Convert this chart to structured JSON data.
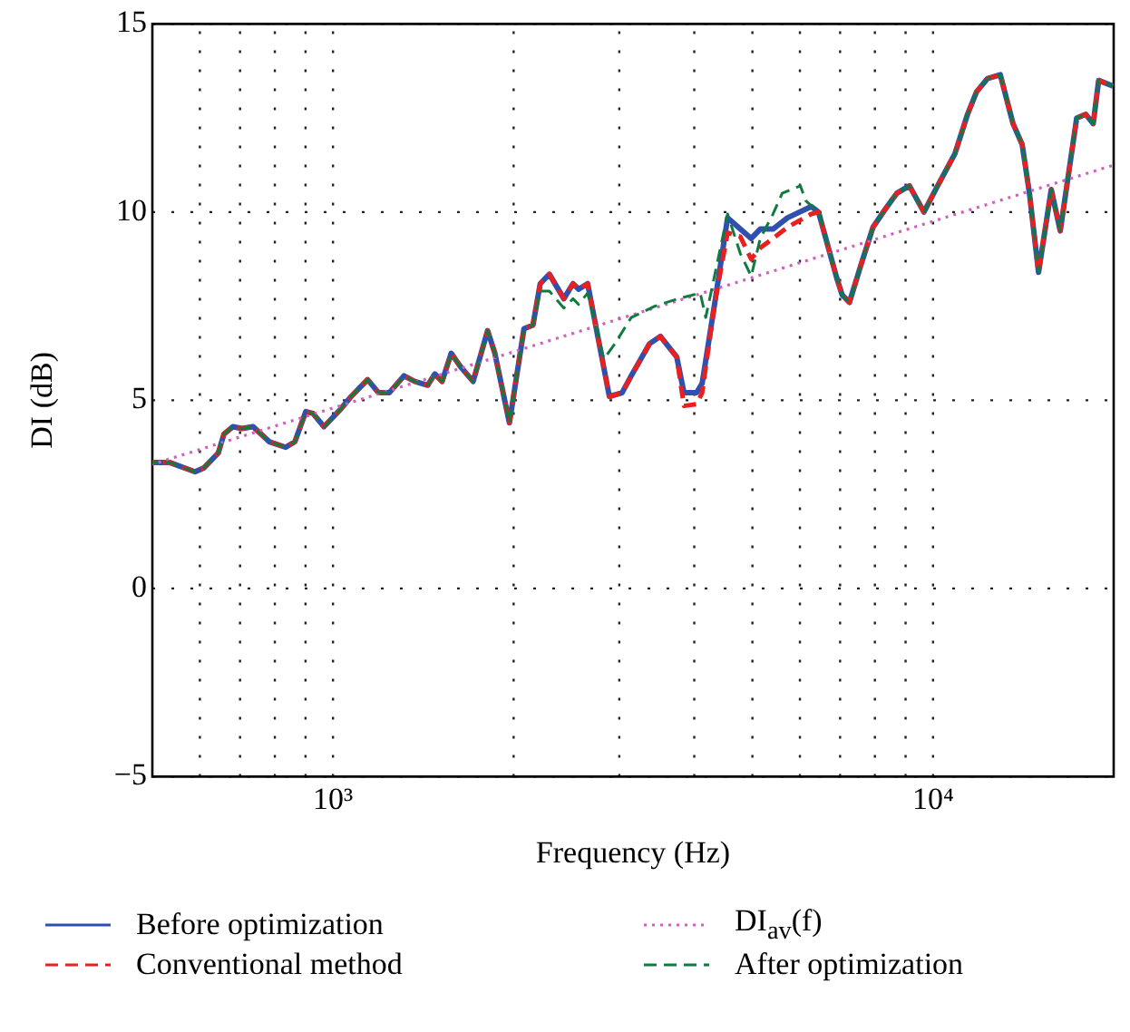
{
  "chart_data": {
    "type": "line",
    "xlabel": "Frequency (Hz)",
    "ylabel": "DI (dB)",
    "log": "x",
    "xlim": [
      500,
      20000
    ],
    "ylim": [
      -5,
      15
    ],
    "xticks": [
      {
        "value": 600,
        "label": null
      },
      {
        "value": 700,
        "label": null
      },
      {
        "value": 800,
        "label": null
      },
      {
        "value": 900,
        "label": null
      },
      {
        "value": 1000,
        "label": "10³"
      },
      {
        "value": 2000,
        "label": null
      },
      {
        "value": 3000,
        "label": null
      },
      {
        "value": 4000,
        "label": null
      },
      {
        "value": 5000,
        "label": null
      },
      {
        "value": 6000,
        "label": null
      },
      {
        "value": 7000,
        "label": null
      },
      {
        "value": 8000,
        "label": null
      },
      {
        "value": 9000,
        "label": null
      },
      {
        "value": 10000,
        "label": "10⁴"
      }
    ],
    "yticks": [
      {
        "value": -5,
        "label": "−5"
      },
      0,
      5,
      10,
      15
    ],
    "grid": true,
    "legend": "bottom",
    "marker": "none",
    "series": [
      {
        "name": "Before optimization",
        "color": "#3050b0",
        "line_style": "solid",
        "x": [
          500,
          534,
          589,
          609,
          644,
          658,
          681,
          705,
          736,
          783,
          834,
          864,
          901,
          926,
          966,
          1028,
          1072,
          1142,
          1191,
          1241,
          1313,
          1369,
          1438,
          1478,
          1520,
          1574,
          1630,
          1712,
          1810,
          1861,
          1968,
          2081,
          2154,
          2215,
          2294,
          2425,
          2512,
          2566,
          2657,
          2888,
          3032,
          3141,
          3368,
          3512,
          3740,
          3845,
          4037,
          4123,
          4329,
          4546,
          4773,
          4977,
          5153,
          5412,
          5722,
          6266,
          6444,
          6910,
          7055,
          7255,
          7567,
          7943,
          8343,
          8700,
          9133,
          9656,
          10140,
          10873,
          11416,
          11820,
          12326,
          12945,
          13593,
          14077,
          14476,
          14991,
          15740,
          16293,
          17353,
          17968,
          18489,
          18880,
          19953
        ],
        "values": [
          3.35,
          3.35,
          3.1,
          3.2,
          3.6,
          4.1,
          4.3,
          4.25,
          4.3,
          3.9,
          3.75,
          3.9,
          4.7,
          4.65,
          4.3,
          4.75,
          5.1,
          5.55,
          5.2,
          5.2,
          5.65,
          5.5,
          5.4,
          5.7,
          5.5,
          6.25,
          5.9,
          5.5,
          6.85,
          6.25,
          4.4,
          6.9,
          7.0,
          8.1,
          8.35,
          7.7,
          8.1,
          7.95,
          8.1,
          5.1,
          5.2,
          5.65,
          6.5,
          6.7,
          6.15,
          5.2,
          5.2,
          5.45,
          7.6,
          9.85,
          9.55,
          9.3,
          9.55,
          9.55,
          9.85,
          10.15,
          10.0,
          8.25,
          7.8,
          7.6,
          8.55,
          9.6,
          10.1,
          10.5,
          10.7,
          10.0,
          10.65,
          11.55,
          12.6,
          13.2,
          13.55,
          13.65,
          12.35,
          11.8,
          10.5,
          8.4,
          10.6,
          9.5,
          12.5,
          12.6,
          12.35,
          13.5,
          13.35
        ]
      },
      {
        "name": "Conventional method",
        "color": "#e82020",
        "line_style": "dashed",
        "x": [
          500,
          534,
          589,
          609,
          644,
          658,
          681,
          705,
          736,
          783,
          834,
          864,
          901,
          926,
          966,
          1028,
          1072,
          1142,
          1191,
          1241,
          1313,
          1369,
          1438,
          1478,
          1520,
          1574,
          1630,
          1712,
          1810,
          1861,
          1968,
          2081,
          2154,
          2215,
          2294,
          2425,
          2512,
          2566,
          2657,
          2888,
          3032,
          3141,
          3368,
          3512,
          3740,
          3845,
          4037,
          4123,
          4329,
          4546,
          4773,
          4977,
          5153,
          5412,
          5722,
          6266,
          6444,
          6910,
          7055,
          7255,
          7567,
          7943,
          8343,
          8700,
          9133,
          9656,
          10140,
          10873,
          11416,
          11820,
          12326,
          12945,
          13593,
          14077,
          14476,
          14991,
          15740,
          16293,
          17353,
          17968,
          18489,
          18880,
          19953
        ],
        "values": [
          3.35,
          3.35,
          3.1,
          3.2,
          3.6,
          4.1,
          4.3,
          4.25,
          4.3,
          3.9,
          3.75,
          3.9,
          4.7,
          4.65,
          4.3,
          4.75,
          5.1,
          5.55,
          5.2,
          5.2,
          5.65,
          5.5,
          5.4,
          5.7,
          5.5,
          6.25,
          5.9,
          5.5,
          6.85,
          6.25,
          4.4,
          6.9,
          7.0,
          8.1,
          8.35,
          7.7,
          8.1,
          7.95,
          8.1,
          5.1,
          5.2,
          5.65,
          6.5,
          6.7,
          6.15,
          4.85,
          4.9,
          5.2,
          7.6,
          9.45,
          9.35,
          8.75,
          9.05,
          9.3,
          9.6,
          9.95,
          10.0,
          8.25,
          7.8,
          7.6,
          8.55,
          9.6,
          10.1,
          10.5,
          10.7,
          10.0,
          10.65,
          11.55,
          12.6,
          13.2,
          13.55,
          13.65,
          12.35,
          11.8,
          10.5,
          8.4,
          10.6,
          9.5,
          12.5,
          12.6,
          12.35,
          13.5,
          13.35
        ]
      },
      {
        "name": "DI$_{av}$(f)",
        "color": "#d060c0",
        "line_style": "dotted",
        "x": [
          500,
          20000
        ],
        "values": [
          3.3,
          11.25
        ]
      },
      {
        "name": "After optimization",
        "color": "#107a40",
        "line_style": "dashed",
        "x": [
          500,
          534,
          589,
          609,
          644,
          658,
          681,
          705,
          736,
          783,
          834,
          864,
          901,
          926,
          966,
          1028,
          1072,
          1142,
          1191,
          1241,
          1313,
          1369,
          1438,
          1478,
          1520,
          1574,
          1630,
          1712,
          1810,
          1861,
          1968,
          2081,
          2154,
          2215,
          2294,
          2425,
          2512,
          2566,
          2657,
          2828,
          2949,
          3141,
          3438,
          3765,
          4093,
          4180,
          4546,
          4773,
          4977,
          5153,
          5412,
          5605,
          6009,
          6137,
          6444,
          6910,
          7055,
          7255,
          7567,
          7943,
          8343,
          8700,
          9133,
          9656,
          10140,
          10873,
          11416,
          11820,
          12326,
          12945,
          13593,
          14077,
          14476,
          14991,
          15740,
          16293,
          17353,
          17968,
          18489,
          18880,
          19953
        ],
        "values": [
          3.35,
          3.35,
          3.1,
          3.2,
          3.6,
          4.1,
          4.3,
          4.25,
          4.3,
          3.9,
          3.75,
          3.9,
          4.7,
          4.65,
          4.3,
          4.75,
          5.1,
          5.55,
          5.2,
          5.2,
          5.65,
          5.5,
          5.4,
          5.7,
          5.5,
          6.25,
          5.9,
          5.5,
          6.85,
          6.25,
          4.4,
          6.9,
          7.0,
          7.9,
          7.9,
          7.45,
          7.7,
          7.55,
          7.85,
          6.1,
          6.5,
          7.2,
          7.5,
          7.7,
          7.85,
          7.2,
          9.95,
          8.9,
          8.3,
          9.3,
          9.95,
          10.5,
          10.7,
          10.3,
          10.0,
          8.25,
          7.8,
          7.6,
          8.55,
          9.6,
          10.1,
          10.5,
          10.7,
          10.0,
          10.65,
          11.55,
          12.6,
          13.2,
          13.55,
          13.65,
          12.35,
          11.8,
          10.5,
          8.4,
          10.6,
          9.5,
          12.5,
          12.6,
          12.35,
          13.5,
          13.35
        ]
      }
    ]
  }
}
